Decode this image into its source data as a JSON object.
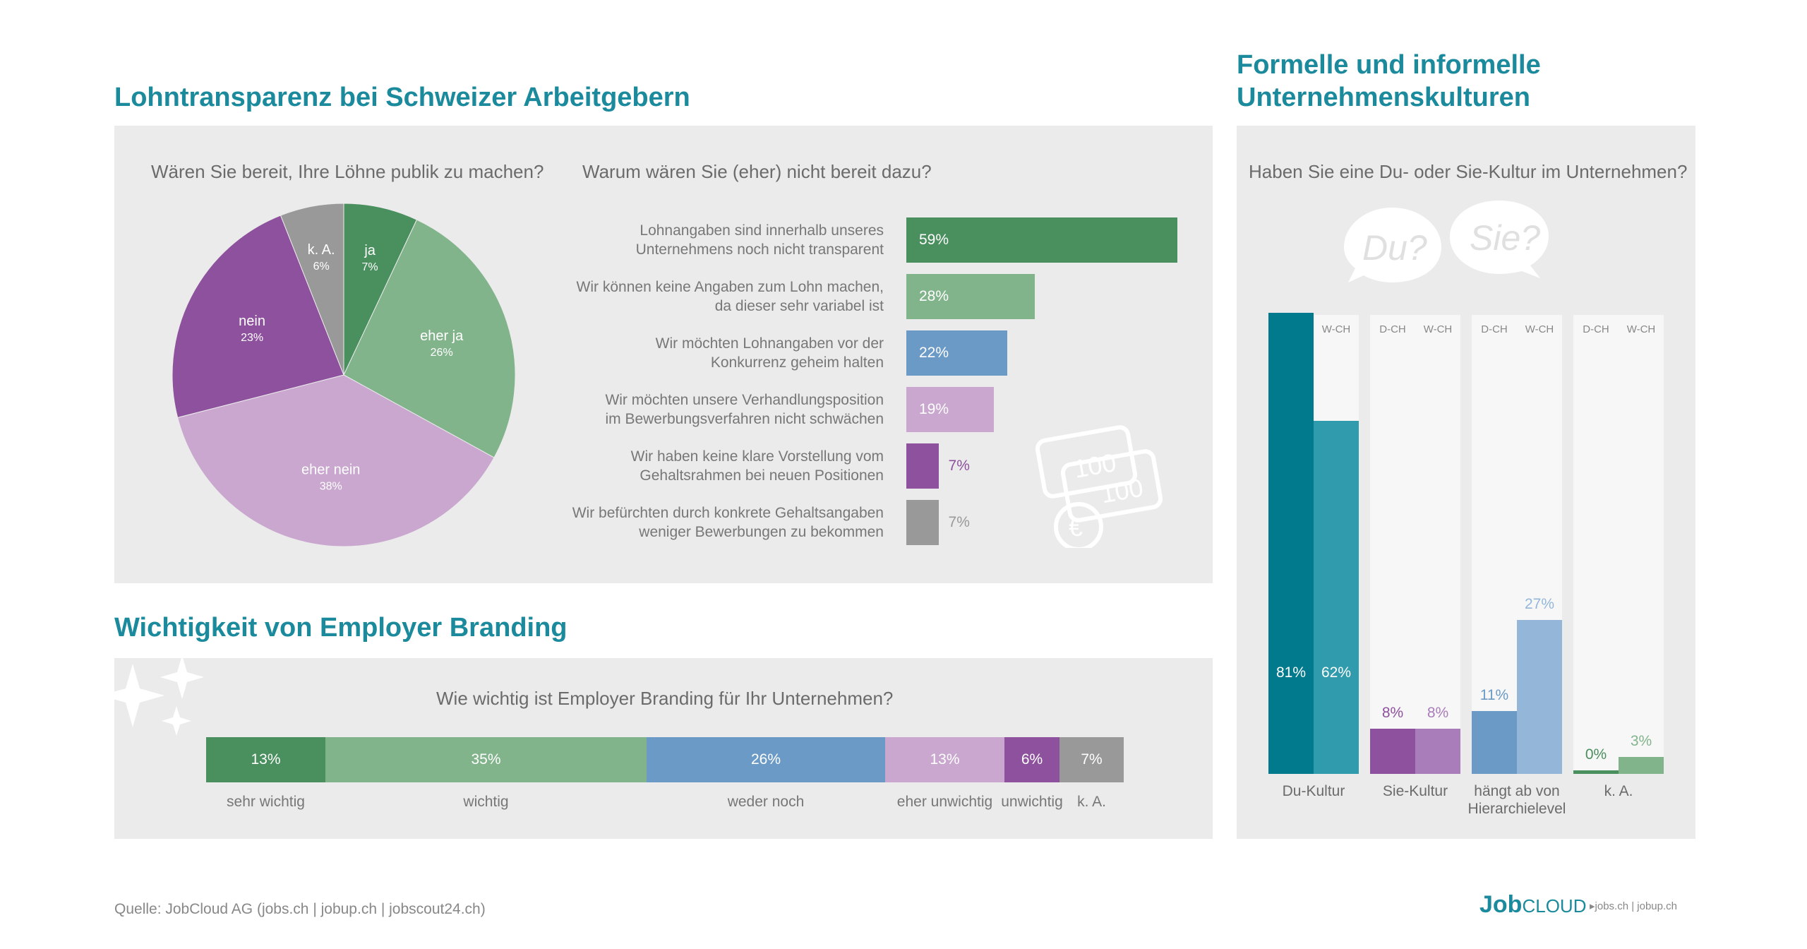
{
  "colors": {
    "title": "#1a8a9c",
    "dark_green": "#4a8f5e",
    "light_green": "#82b48c",
    "blue": "#6b9ac6",
    "light_purple": "#c9a7cf",
    "purple": "#8e519d",
    "grey": "#999999",
    "teal_dark": "#007a8c",
    "teal": "#2f9bad",
    "blue_dark": "#6b9ac6",
    "blue_light": "#94b7d9",
    "purple_dark": "#8e519d",
    "purple_light": "#a97cba"
  },
  "section1": {
    "title": "Lohntransparenz bei Schweizer Arbeitgebern",
    "pie_question": "Wären Sie bereit, Ihre Löhne publik zu machen?",
    "bar_question": "Warum wären Sie (eher) nicht bereit dazu?",
    "money_icon_labels": [
      "100",
      "100",
      "€"
    ]
  },
  "section2": {
    "title": "Wichtigkeit von Employer Branding",
    "question": "Wie wichtig ist Employer Branding für Ihr Unternehmen?"
  },
  "section3": {
    "title_line1": "Formelle und informelle",
    "title_line2": "Unternehmenskulturen",
    "question": "Haben Sie eine Du- oder Sie-Kultur im Unternehmen?",
    "bubble_du": "Du?",
    "bubble_sie": "Sie?"
  },
  "footer": {
    "source": "Quelle: JobCloud AG (jobs.ch  |  jobup.ch  |  jobscout24.ch)",
    "logo_job": "Job",
    "logo_cloud": "CLOUD",
    "logo_sites": "▸jobs.ch  |  jobup.ch"
  },
  "chart_data": [
    {
      "type": "pie",
      "title": "Wären Sie bereit, Ihre Löhne publik zu machen?",
      "slices": [
        {
          "label": "ja",
          "value": 7,
          "value_label": "7%",
          "color": "#4a8f5e"
        },
        {
          "label": "eher ja",
          "value": 26,
          "value_label": "26%",
          "color": "#82b48c"
        },
        {
          "label": "eher nein",
          "value": 38,
          "value_label": "38%",
          "color": "#c9a7cf"
        },
        {
          "label": "nein",
          "value": 23,
          "value_label": "23%",
          "color": "#8e519d"
        },
        {
          "label": "k. A.",
          "value": 6,
          "value_label": "6%",
          "color": "#999999"
        }
      ]
    },
    {
      "type": "bar",
      "orientation": "horizontal",
      "title": "Warum wären Sie (eher) nicht bereit dazu?",
      "bars": [
        {
          "label_line1": "Lohnangaben sind innerhalb unseres",
          "label_line2": "Unternehmens noch nicht transparent",
          "value": 59,
          "value_label": "59%",
          "color": "#4a8f5e",
          "inside": true
        },
        {
          "label_line1": "Wir können keine Angaben zum Lohn machen,",
          "label_line2": "da dieser sehr variabel ist",
          "value": 28,
          "value_label": "28%",
          "color": "#82b48c",
          "inside": true
        },
        {
          "label_line1": "Wir möchten Lohnangaben vor der",
          "label_line2": "Konkurrenz geheim halten",
          "value": 22,
          "value_label": "22%",
          "color": "#6b9ac6",
          "inside": true
        },
        {
          "label_line1": "Wir möchten unsere Verhandlungsposition",
          "label_line2": "im Bewerbungsverfahren nicht schwächen",
          "value": 19,
          "value_label": "19%",
          "color": "#c9a7cf",
          "inside": true
        },
        {
          "label_line1": "Wir haben keine klare Vorstellung vom",
          "label_line2": "Gehaltsrahmen bei neuen Positionen",
          "value": 7,
          "value_label": "7%",
          "color": "#8e519d",
          "inside": false
        },
        {
          "label_line1": "Wir befürchten durch konkrete Gehaltsangaben",
          "label_line2": "weniger Bewerbungen zu bekommen",
          "value": 7,
          "value_label": "7%",
          "color": "#999999",
          "inside": false
        }
      ]
    },
    {
      "type": "bar",
      "orientation": "stacked-horizontal",
      "title": "Wie wichtig ist Employer Branding für Ihr Unternehmen?",
      "segments": [
        {
          "label": "sehr wichtig",
          "value": 13,
          "value_label": "13%",
          "color": "#4a8f5e"
        },
        {
          "label": "wichtig",
          "value": 35,
          "value_label": "35%",
          "color": "#82b48c"
        },
        {
          "label": "weder noch",
          "value": 26,
          "value_label": "26%",
          "color": "#6b9ac6"
        },
        {
          "label": "eher unwichtig",
          "value": 13,
          "value_label": "13%",
          "color": "#c9a7cf"
        },
        {
          "label": "unwichtig",
          "value": 6,
          "value_label": "6%",
          "color": "#8e519d"
        },
        {
          "label": "k. A.",
          "value": 7,
          "value_label": "7%",
          "color": "#999999"
        }
      ]
    },
    {
      "type": "bar",
      "orientation": "vertical-grouped",
      "title": "Haben Sie eine Du- oder Sie-Kultur im Unternehmen?",
      "series_names": [
        "D-CH",
        "W-CH"
      ],
      "ylim": [
        0,
        100
      ],
      "groups": [
        {
          "label_line1": "Du-Kultur",
          "label_line2": "",
          "values": [
            81,
            62
          ],
          "value_labels": [
            "81%",
            "62%"
          ],
          "colors": [
            "#007a8c",
            "#2f9bad"
          ],
          "label_inside": true
        },
        {
          "label_line1": "Sie-Kultur",
          "label_line2": "",
          "values": [
            8,
            8
          ],
          "value_labels": [
            "8%",
            "8%"
          ],
          "colors": [
            "#8e519d",
            "#a97cba"
          ],
          "label_inside": false
        },
        {
          "label_line1": "hängt ab von",
          "label_line2": "Hierarchielevel",
          "values": [
            11,
            27
          ],
          "value_labels": [
            "11%",
            "27%"
          ],
          "colors": [
            "#6b9ac6",
            "#94b7d9"
          ],
          "label_inside": false
        },
        {
          "label_line1": "k. A.",
          "label_line2": "",
          "values": [
            0,
            3
          ],
          "value_labels": [
            "0%",
            "3%"
          ],
          "colors": [
            "#4a8f5e",
            "#82b48c"
          ],
          "label_inside": false
        }
      ]
    }
  ]
}
